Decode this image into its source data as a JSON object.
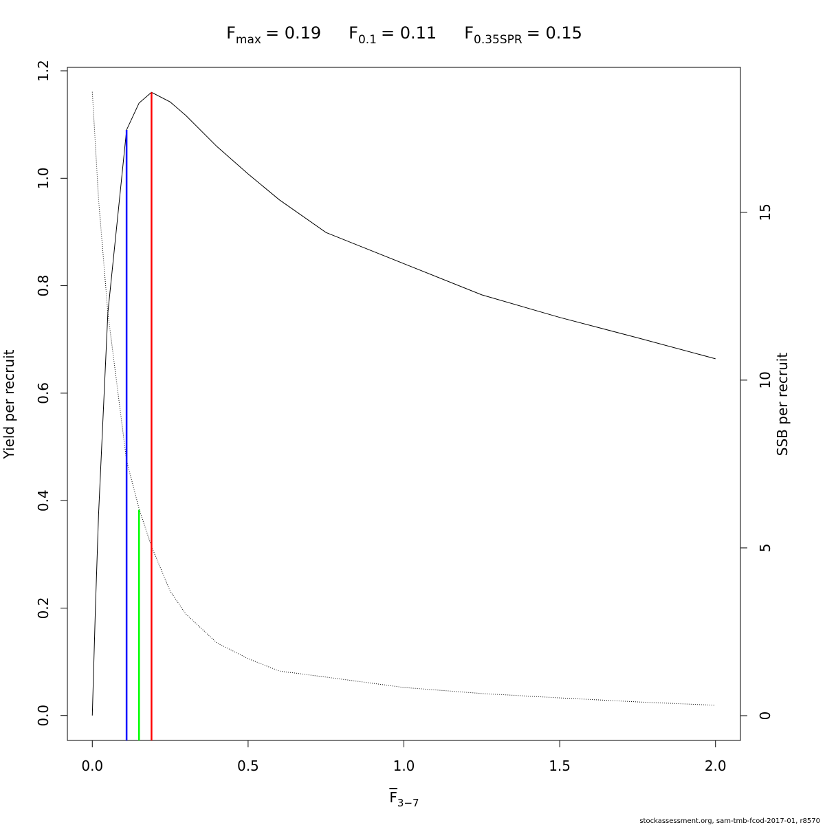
{
  "chart_data": {
    "type": "line",
    "title_parts": [
      {
        "main": "F",
        "sub": "max",
        "rest": "= 0.19"
      },
      {
        "main": "F",
        "sub": "0.1",
        "rest": "= 0.11"
      },
      {
        "main": "F",
        "sub": "0.35SPR",
        "rest": "= 0.15"
      }
    ],
    "x_label": {
      "main": "F",
      "sub": "3−7"
    },
    "y_label": "Yield per recruit",
    "y2_label": "SSB per recruit",
    "footer": "stockassessment.org, sam-tmb-fcod-2017-01, r8570",
    "x": [
      0,
      0.01,
      0.02,
      0.05,
      0.11,
      0.15,
      0.19,
      0.25,
      0.3,
      0.4,
      0.5,
      0.6,
      0.75,
      1.0,
      1.25,
      1.5,
      1.75,
      2.0
    ],
    "series": [
      {
        "axis": "y",
        "color": "#000000",
        "linestyle": "solid",
        "values": [
          0,
          0.2,
          0.373,
          0.75,
          1.09,
          1.14,
          1.16,
          1.142,
          1.117,
          1.059,
          1.008,
          0.96,
          0.899,
          0.841,
          0.783,
          0.741,
          0.703,
          0.664
        ]
      },
      {
        "axis": "y2",
        "color": "#000000",
        "linestyle": "dotted",
        "values": [
          18.59,
          17.0,
          15.4,
          12.0,
          7.6,
          6.17,
          5.04,
          3.71,
          3.03,
          2.17,
          1.7,
          1.33,
          1.15,
          0.84,
          0.66,
          0.53,
          0.41,
          0.31
        ]
      }
    ],
    "reference_lines": [
      {
        "x": 0.11,
        "value": 1.09,
        "color": "#0000ff"
      },
      {
        "x": 0.15,
        "value": 0.383,
        "color": "#00ff00"
      },
      {
        "x": 0.19,
        "value": 1.16,
        "color": "#ff0000"
      }
    ],
    "xlim": [
      -0.08,
      2.08
    ],
    "xticks": [
      {
        "value": 0,
        "label": "0.0"
      },
      0.5,
      {
        "value": 1,
        "label": "1.0"
      },
      1.5,
      {
        "value": 2,
        "label": "2.0"
      }
    ],
    "ylim": [
      -0.0464,
      1.2064
    ],
    "yticks": [
      {
        "value": 0,
        "label": "0.0"
      },
      0.2,
      0.4,
      0.6,
      0.8,
      {
        "value": 1,
        "label": "1.0"
      },
      1.2
    ],
    "y2lim": [
      -0.738,
      19.32
    ],
    "y2ticks": [
      0,
      5,
      10,
      15
    ]
  }
}
